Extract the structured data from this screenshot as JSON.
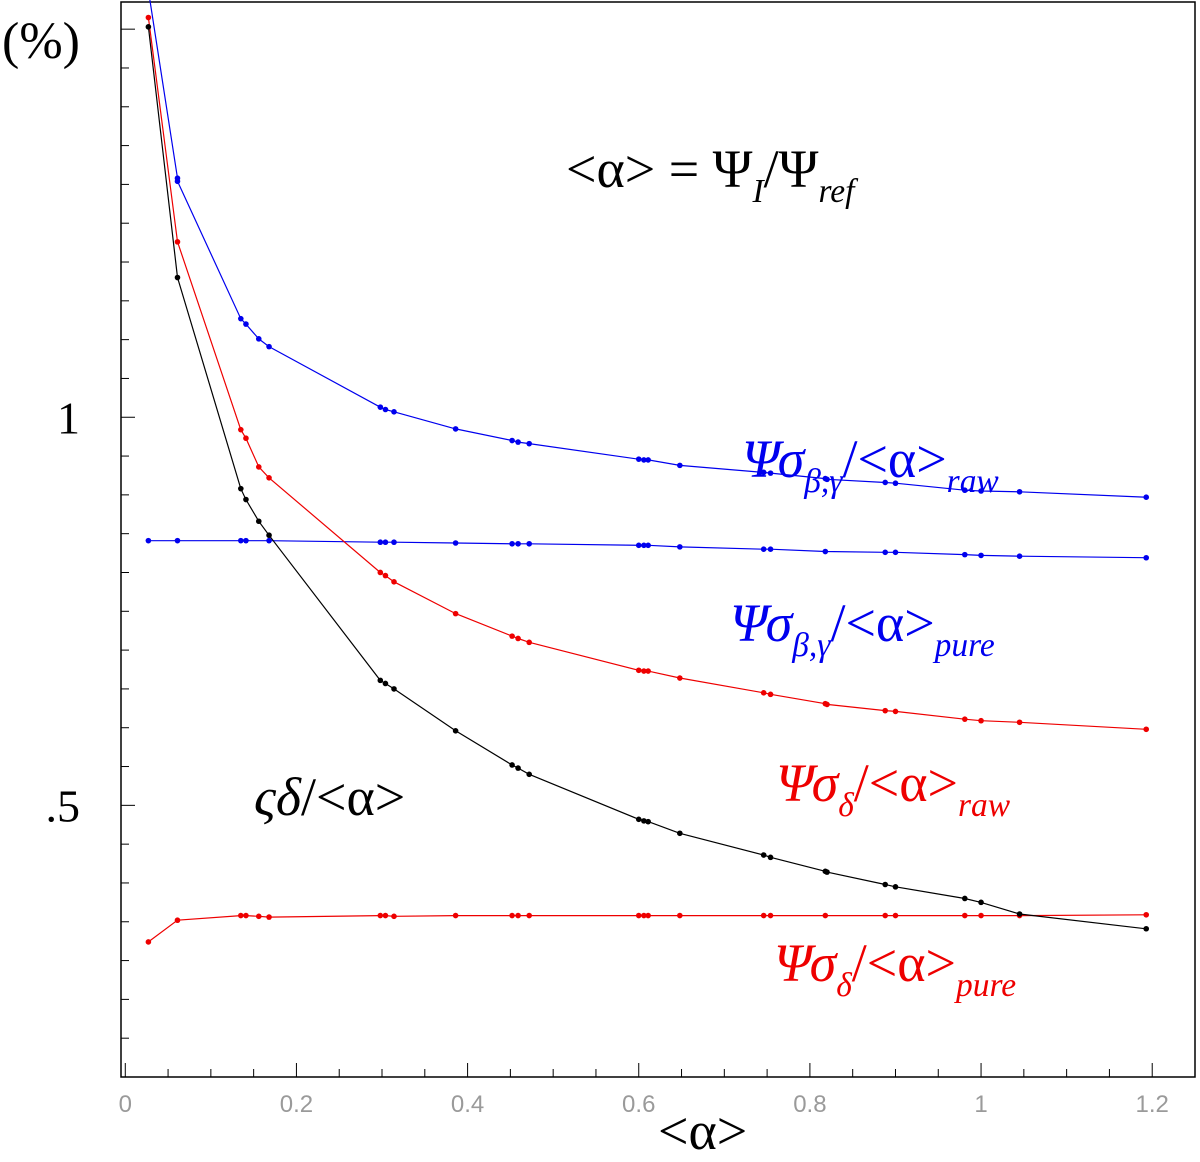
{
  "chart_data": {
    "type": "line",
    "ylabel": "(%)",
    "xlabel": "<α>",
    "formula": "<α> = Ψ_I / Ψ_ref",
    "xlim": [
      -0.005,
      1.25
    ],
    "ylim": [
      0.15,
      1.535
    ],
    "xticks": [
      0,
      0.2,
      0.4,
      0.6,
      0.8,
      1.0,
      1.2
    ],
    "xtick_labels": [
      "0",
      "0.2",
      "0.4",
      "0.6",
      "0.8",
      "1",
      "1.2"
    ],
    "yticks": [
      0.5,
      1.0
    ],
    "ytick_labels": [
      ".5",
      "1"
    ],
    "grid": false,
    "series": [
      {
        "name": "Ψσβ,γ/<α>raw",
        "color": "#0000ee",
        "x": [
          0.027,
          0.027,
          0.061,
          0.061,
          0.135,
          0.141,
          0.156,
          0.168,
          0.298,
          0.304,
          0.314,
          0.386,
          0.452,
          0.459,
          0.472,
          0.6,
          0.606,
          0.611,
          0.648,
          0.746,
          0.754,
          0.818,
          0.82,
          0.888,
          0.9,
          0.981,
          1.0,
          1.045,
          1.193
        ],
        "y": [
          1.555,
          1.55,
          1.308,
          1.304,
          1.127,
          1.12,
          1.101,
          1.091,
          1.013,
          1.01,
          1.007,
          0.985,
          0.97,
          0.968,
          0.966,
          0.946,
          0.945,
          0.945,
          0.938,
          0.929,
          0.928,
          0.921,
          0.92,
          0.916,
          0.915,
          0.906,
          0.905,
          0.904,
          0.897
        ]
      },
      {
        "name": "Ψσβ,γ/<α>pure",
        "color": "#0000ee",
        "x": [
          0.027,
          0.061,
          0.135,
          0.141,
          0.168,
          0.298,
          0.304,
          0.314,
          0.386,
          0.452,
          0.459,
          0.472,
          0.6,
          0.606,
          0.611,
          0.648,
          0.746,
          0.754,
          0.818,
          0.888,
          0.9,
          0.981,
          1.0,
          1.045,
          1.193
        ],
        "y": [
          0.841,
          0.841,
          0.841,
          0.841,
          0.841,
          0.839,
          0.839,
          0.839,
          0.838,
          0.837,
          0.837,
          0.837,
          0.835,
          0.835,
          0.835,
          0.833,
          0.83,
          0.83,
          0.827,
          0.826,
          0.826,
          0.823,
          0.822,
          0.821,
          0.819
        ]
      },
      {
        "name": "Ψσδ/<α>raw",
        "color": "#ee0000",
        "x": [
          0.027,
          0.061,
          0.135,
          0.141,
          0.156,
          0.168,
          0.298,
          0.304,
          0.314,
          0.386,
          0.452,
          0.459,
          0.472,
          0.6,
          0.606,
          0.611,
          0.648,
          0.746,
          0.754,
          0.818,
          0.82,
          0.888,
          0.9,
          0.981,
          1.0,
          1.045,
          1.193
        ],
        "y": [
          1.515,
          1.226,
          0.984,
          0.973,
          0.936,
          0.922,
          0.8,
          0.796,
          0.788,
          0.747,
          0.718,
          0.715,
          0.71,
          0.674,
          0.673,
          0.673,
          0.664,
          0.645,
          0.643,
          0.631,
          0.63,
          0.622,
          0.621,
          0.611,
          0.609,
          0.607,
          0.598
        ]
      },
      {
        "name": "Ψσδ/<α>pure",
        "color": "#ee0000",
        "x": [
          0.027,
          0.061,
          0.135,
          0.141,
          0.156,
          0.168,
          0.298,
          0.304,
          0.314,
          0.386,
          0.452,
          0.459,
          0.472,
          0.6,
          0.606,
          0.611,
          0.648,
          0.746,
          0.754,
          0.818,
          0.888,
          0.9,
          0.981,
          1.0,
          1.045,
          1.193
        ],
        "y": [
          0.324,
          0.352,
          0.358,
          0.358,
          0.357,
          0.356,
          0.358,
          0.358,
          0.357,
          0.358,
          0.358,
          0.358,
          0.358,
          0.358,
          0.358,
          0.358,
          0.358,
          0.358,
          0.358,
          0.358,
          0.358,
          0.358,
          0.358,
          0.358,
          0.358,
          0.359
        ]
      },
      {
        "name": "ςδ/<α>",
        "color": "#000000",
        "x": [
          0.027,
          0.061,
          0.135,
          0.141,
          0.156,
          0.168,
          0.298,
          0.304,
          0.314,
          0.386,
          0.452,
          0.459,
          0.472,
          0.6,
          0.606,
          0.611,
          0.648,
          0.746,
          0.754,
          0.818,
          0.82,
          0.888,
          0.9,
          0.981,
          1.0,
          1.045,
          1.193
        ],
        "y": [
          1.503,
          1.18,
          0.908,
          0.894,
          0.866,
          0.848,
          0.661,
          0.657,
          0.65,
          0.596,
          0.552,
          0.548,
          0.54,
          0.482,
          0.48,
          0.479,
          0.464,
          0.436,
          0.433,
          0.415,
          0.414,
          0.398,
          0.395,
          0.38,
          0.375,
          0.36,
          0.341
        ]
      }
    ]
  },
  "labels": {
    "curve_bg_raw": {
      "base": "Ψσ",
      "sub1": "β,γ",
      "slash": "/<α>",
      "sub2": "raw"
    },
    "curve_bg_pure": {
      "base": "Ψσ",
      "sub1": "β,γ",
      "slash": "/<α>",
      "sub2": "pure"
    },
    "curve_d_raw": {
      "base": "Ψσ",
      "sub1": "δ",
      "slash": "/<α>",
      "sub2": "raw"
    },
    "curve_d_pure": {
      "base": "Ψσ",
      "sub1": "δ",
      "slash": "/<α>",
      "sub2": "pure"
    },
    "curve_sd": {
      "base": "ςδ",
      "slash": "/<α>"
    },
    "formula": {
      "lhs": "<α> = Ψ",
      "sub1": "I",
      "mid": "/Ψ",
      "sub2": "ref"
    }
  }
}
